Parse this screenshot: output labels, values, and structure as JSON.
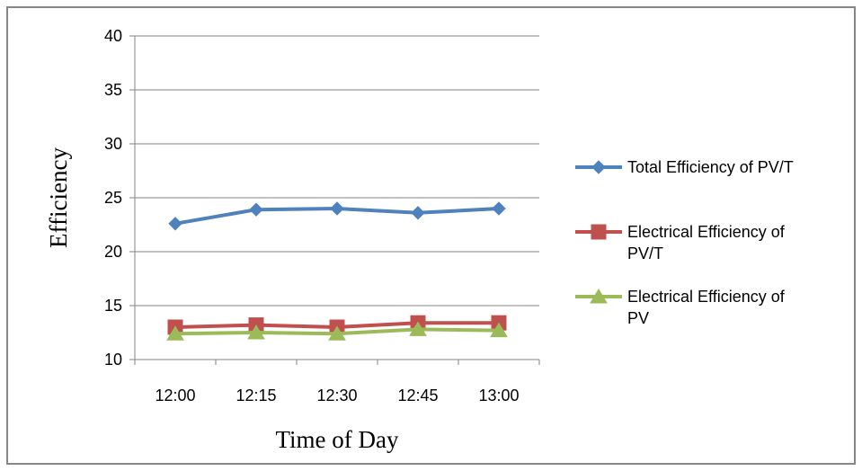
{
  "chart_data": {
    "type": "line",
    "title": "",
    "xlabel": "Time of Day",
    "ylabel": "Efficiency",
    "categories": [
      "12:00",
      "12:15",
      "12:30",
      "12:45",
      "13:00"
    ],
    "ylim": [
      10,
      40
    ],
    "yticks": [
      10,
      15,
      20,
      25,
      30,
      35,
      40
    ],
    "grid": true,
    "legend_position": "right",
    "series": [
      {
        "name": "Total Efficiency of PV/T",
        "values": [
          22.6,
          23.9,
          24.0,
          23.6,
          24.0
        ],
        "color": "#4F81BD",
        "marker": "diamond"
      },
      {
        "name": "Electrical Efficiency of PV/T",
        "values": [
          13.0,
          13.2,
          13.0,
          13.4,
          13.4
        ],
        "color": "#C0504D",
        "marker": "square"
      },
      {
        "name": "Electrical Efficiency of PV",
        "values": [
          12.4,
          12.5,
          12.4,
          12.8,
          12.7
        ],
        "color": "#9BBB59",
        "marker": "triangle"
      }
    ]
  }
}
